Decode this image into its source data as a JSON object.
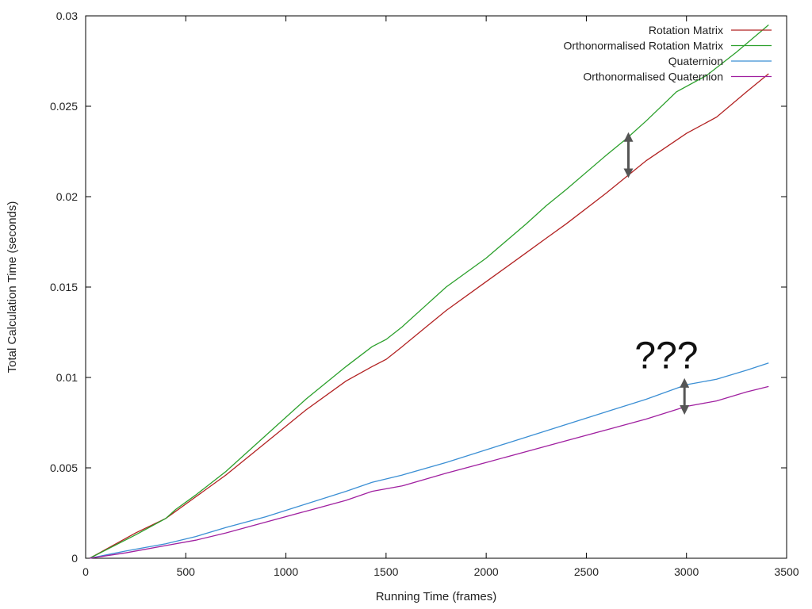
{
  "chart_data": {
    "type": "line",
    "title": "",
    "xlabel": "Running Time (frames)",
    "ylabel": "Total Calculation Time (seconds)",
    "xlim": [
      0,
      3500
    ],
    "ylim": [
      0,
      0.03
    ],
    "x_ticks": [
      0,
      500,
      1000,
      1500,
      2000,
      2500,
      3000,
      3500
    ],
    "y_ticks": [
      0,
      0.005,
      0.01,
      0.015,
      0.02,
      0.025,
      0.03
    ],
    "x_tick_labels": [
      "0",
      "500",
      "1000",
      "1500",
      "2000",
      "2500",
      "3000",
      "3500"
    ],
    "y_tick_labels": [
      "0",
      "0.005",
      "0.01",
      "0.015",
      "0.02",
      "0.025",
      "0.03"
    ],
    "grid": false,
    "legend_position": "top-right",
    "series": [
      {
        "name": "Rotation Matrix",
        "color": "#b22222",
        "points": [
          [
            20,
            0
          ],
          [
            250,
            0.0014
          ],
          [
            400,
            0.0022
          ],
          [
            450,
            0.0026
          ],
          [
            500,
            0.003
          ],
          [
            550,
            0.0034
          ],
          [
            700,
            0.0046
          ],
          [
            900,
            0.0064
          ],
          [
            1100,
            0.0082
          ],
          [
            1300,
            0.0098
          ],
          [
            1430,
            0.0106
          ],
          [
            1500,
            0.011
          ],
          [
            1580,
            0.0117
          ],
          [
            1700,
            0.0128
          ],
          [
            1800,
            0.0137
          ],
          [
            2000,
            0.0153
          ],
          [
            2200,
            0.0169
          ],
          [
            2300,
            0.0177
          ],
          [
            2400,
            0.0185
          ],
          [
            2600,
            0.0202
          ],
          [
            2700,
            0.0211
          ],
          [
            2800,
            0.022
          ],
          [
            3000,
            0.0235
          ],
          [
            3150,
            0.0244
          ],
          [
            3300,
            0.0258
          ],
          [
            3410,
            0.0268
          ]
        ]
      },
      {
        "name": "Orthonormalised Rotation Matrix",
        "color": "#2ca02c",
        "points": [
          [
            20,
            0
          ],
          [
            250,
            0.0013
          ],
          [
            400,
            0.0022
          ],
          [
            450,
            0.0027
          ],
          [
            500,
            0.0031
          ],
          [
            550,
            0.0035
          ],
          [
            700,
            0.0048
          ],
          [
            900,
            0.0068
          ],
          [
            1100,
            0.0088
          ],
          [
            1300,
            0.0106
          ],
          [
            1430,
            0.0117
          ],
          [
            1500,
            0.0121
          ],
          [
            1580,
            0.0128
          ],
          [
            1700,
            0.014
          ],
          [
            1800,
            0.015
          ],
          [
            2000,
            0.0166
          ],
          [
            2200,
            0.0185
          ],
          [
            2300,
            0.0195
          ],
          [
            2400,
            0.0204
          ],
          [
            2600,
            0.0223
          ],
          [
            2700,
            0.0232
          ],
          [
            2800,
            0.0242
          ],
          [
            2950,
            0.0258
          ],
          [
            3100,
            0.0267
          ],
          [
            3250,
            0.028
          ],
          [
            3410,
            0.0295
          ]
        ]
      },
      {
        "name": "Quaternion",
        "color": "#3b8fd4",
        "points": [
          [
            20,
            0
          ],
          [
            200,
            0.0004
          ],
          [
            400,
            0.0008
          ],
          [
            550,
            0.0012
          ],
          [
            700,
            0.0017
          ],
          [
            900,
            0.0023
          ],
          [
            1100,
            0.003
          ],
          [
            1300,
            0.0037
          ],
          [
            1430,
            0.0042
          ],
          [
            1580,
            0.0046
          ],
          [
            1800,
            0.0053
          ],
          [
            2000,
            0.006
          ],
          [
            2200,
            0.0067
          ],
          [
            2400,
            0.0074
          ],
          [
            2600,
            0.0081
          ],
          [
            2800,
            0.0088
          ],
          [
            3000,
            0.0096
          ],
          [
            3150,
            0.0099
          ],
          [
            3300,
            0.0104
          ],
          [
            3410,
            0.0108
          ]
        ]
      },
      {
        "name": "Orthonormalised Quaternion",
        "color": "#a020a0",
        "points": [
          [
            20,
            0
          ],
          [
            200,
            0.0003
          ],
          [
            400,
            0.0007
          ],
          [
            550,
            0.001
          ],
          [
            700,
            0.0014
          ],
          [
            900,
            0.002
          ],
          [
            1100,
            0.0026
          ],
          [
            1300,
            0.0032
          ],
          [
            1430,
            0.0037
          ],
          [
            1580,
            0.004
          ],
          [
            1800,
            0.0047
          ],
          [
            2000,
            0.0053
          ],
          [
            2200,
            0.0059
          ],
          [
            2400,
            0.0065
          ],
          [
            2600,
            0.0071
          ],
          [
            2800,
            0.0077
          ],
          [
            3000,
            0.0084
          ],
          [
            3150,
            0.0087
          ],
          [
            3300,
            0.0092
          ],
          [
            3410,
            0.0095
          ]
        ]
      }
    ],
    "annotations": [
      {
        "type": "double-arrow",
        "x": 2710,
        "y_from": 0.0213,
        "y_to": 0.0233,
        "color": "#555555"
      },
      {
        "type": "double-arrow",
        "x": 2990,
        "y_from": 0.0082,
        "y_to": 0.0097,
        "color": "#555555"
      },
      {
        "type": "text",
        "text": "???",
        "x": 2900,
        "y": 0.0105
      }
    ]
  }
}
